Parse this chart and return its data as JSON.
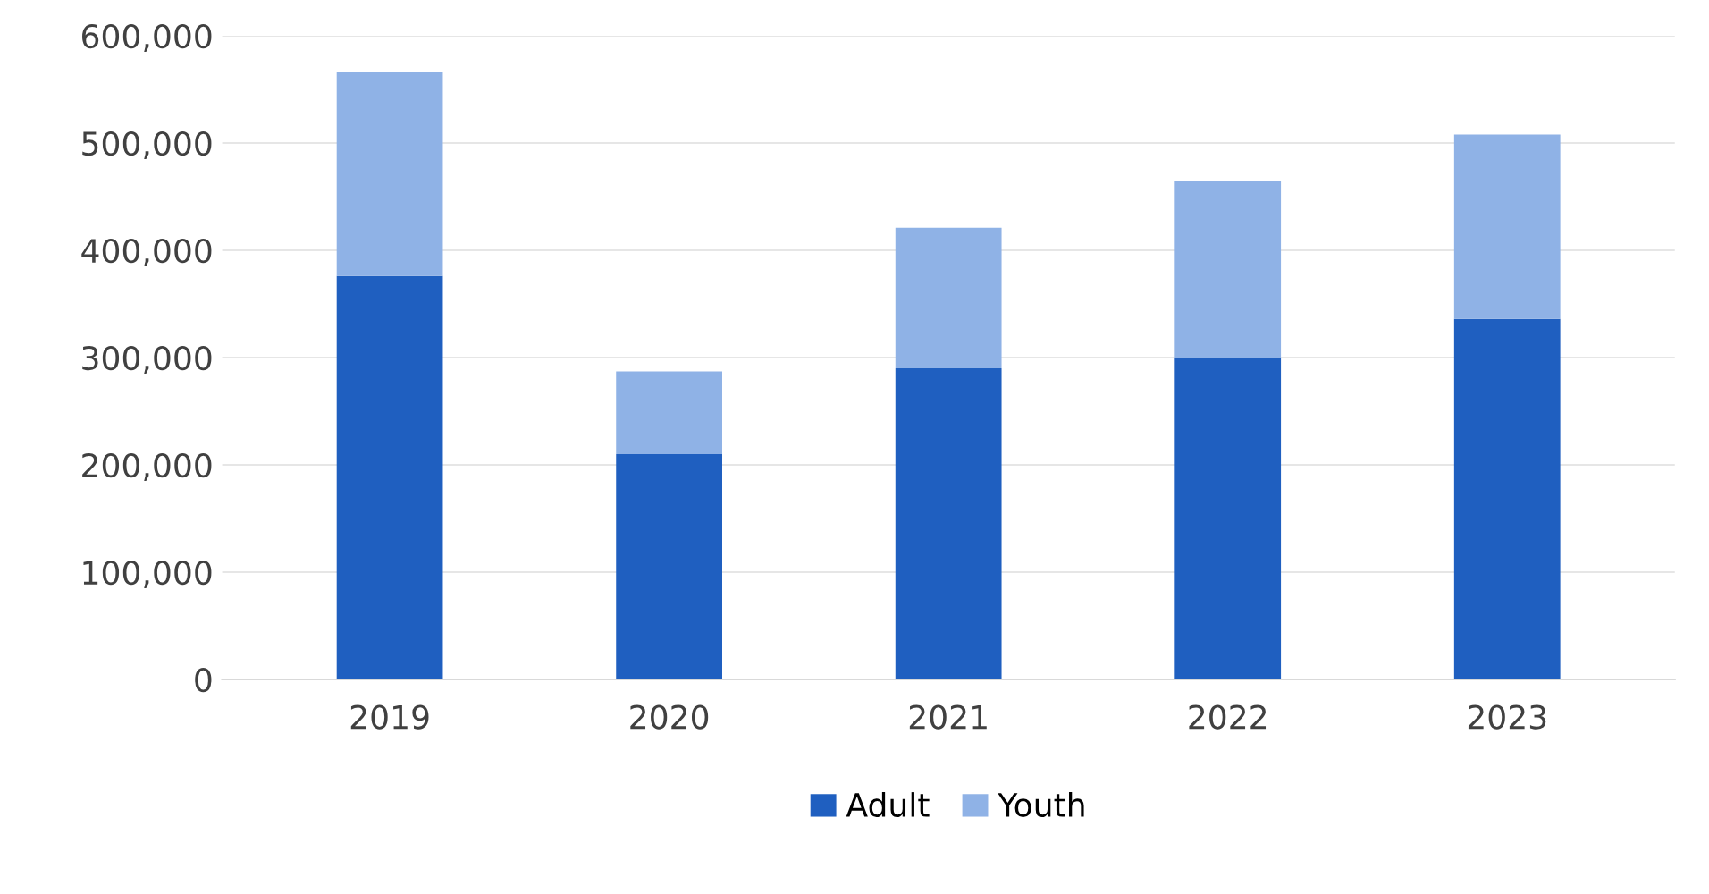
{
  "chart_data": {
    "type": "bar",
    "stacked": true,
    "categories": [
      "2019",
      "2020",
      "2021",
      "2022",
      "2023"
    ],
    "series": [
      {
        "name": "Adult",
        "color": "#1f5fc0",
        "values": [
          376000,
          210000,
          290000,
          300000,
          336000
        ]
      },
      {
        "name": "Youth",
        "color": "#8fb2e6",
        "values": [
          190000,
          77000,
          131000,
          165000,
          172000
        ]
      }
    ],
    "ylim": [
      0,
      600000
    ],
    "yticks": [
      {
        "value": 0,
        "label": "0"
      },
      {
        "value": 100000,
        "label": "100,000"
      },
      {
        "value": 200000,
        "label": "200,000"
      },
      {
        "value": 300000,
        "label": "300,000"
      },
      {
        "value": 400000,
        "label": "400,000"
      },
      {
        "value": 500000,
        "label": "500,000"
      },
      {
        "value": 600000,
        "label": "600,000"
      }
    ],
    "grid": "y",
    "legend": "bottom"
  }
}
